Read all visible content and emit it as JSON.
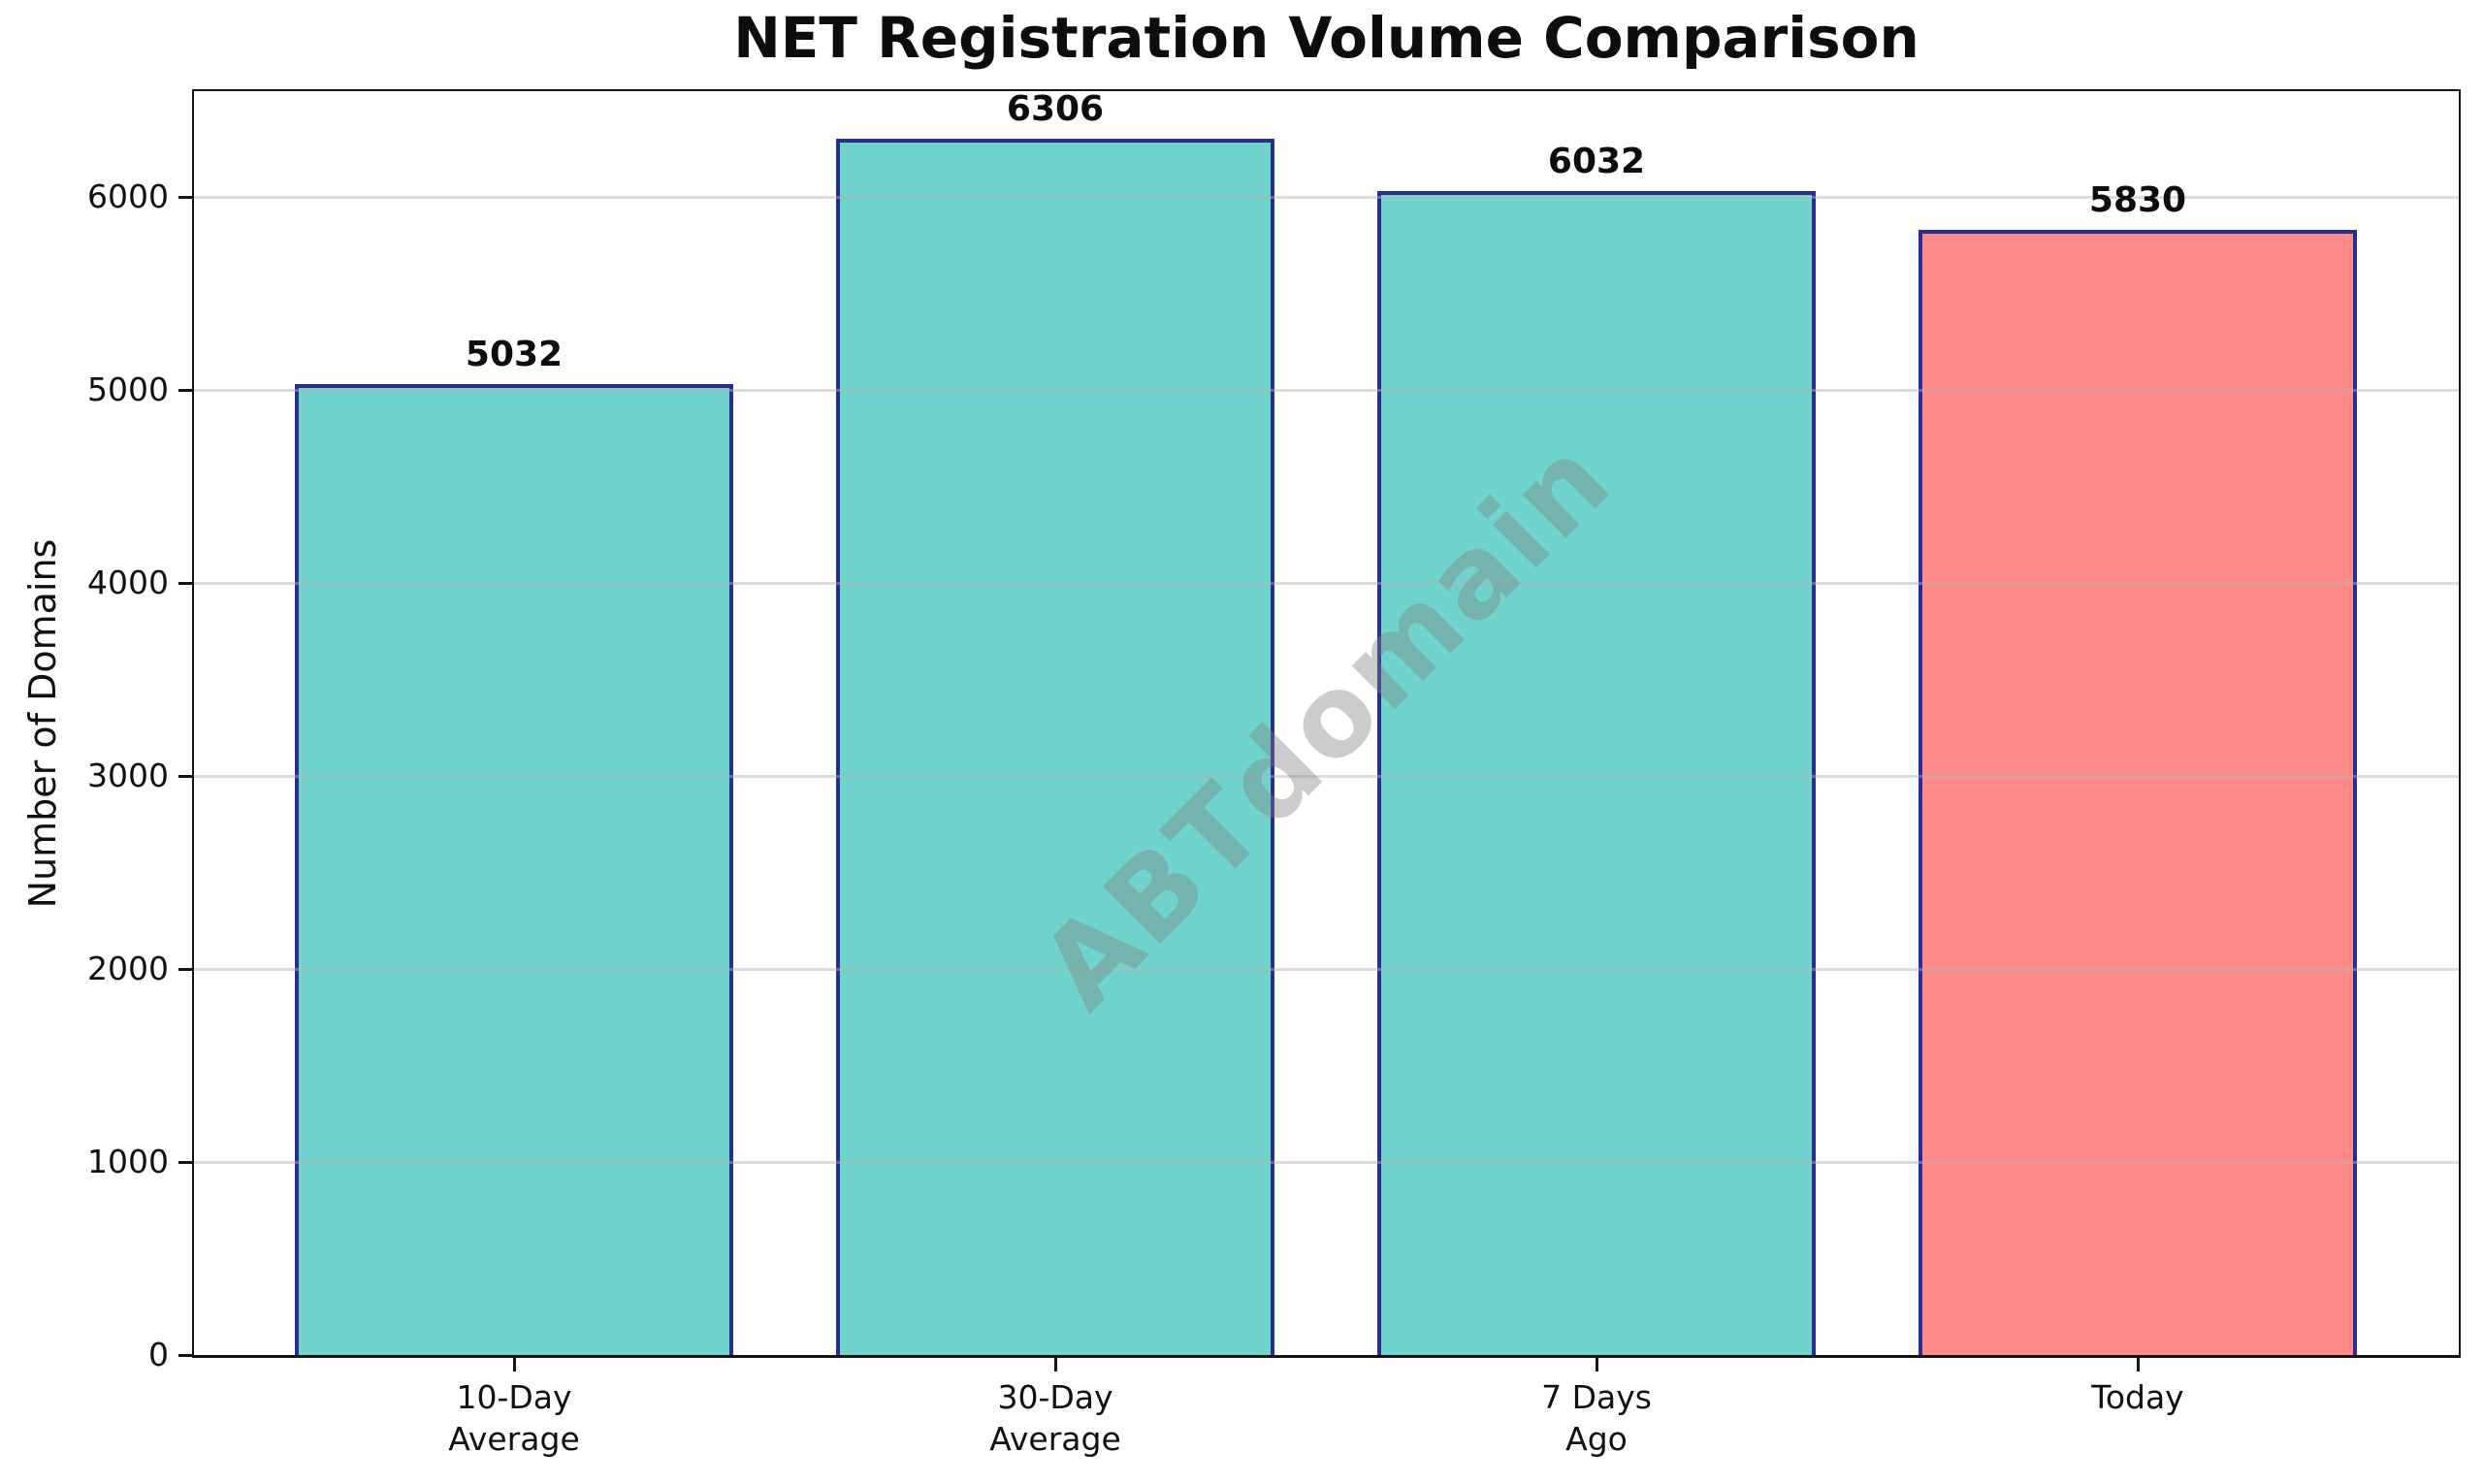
{
  "chart_data": {
    "type": "bar",
    "title": "NET Registration Volume Comparison",
    "ylabel": "Number of Domains",
    "xlabel": "",
    "categories": [
      "10-Day\nAverage",
      "30-Day\nAverage",
      "7 Days\nAgo",
      "Today"
    ],
    "values": [
      5032,
      6306,
      6032,
      5830
    ],
    "value_labels": [
      "5032",
      "6306",
      "6032",
      "5830"
    ],
    "bar_colors": [
      "#6FD5CC",
      "#6FD5CC",
      "#6FD5CC",
      "#FF8A8A"
    ],
    "bar_edge_color": "#282C96",
    "teal_color": "#6FD5CC",
    "salmon_color": "#FF8A8A",
    "yticks": [
      0,
      1000,
      2000,
      3000,
      4000,
      5000,
      6000
    ],
    "ylim": [
      0,
      6550
    ],
    "grid": true,
    "legend_position": "none",
    "watermark": "ABTdomain"
  }
}
